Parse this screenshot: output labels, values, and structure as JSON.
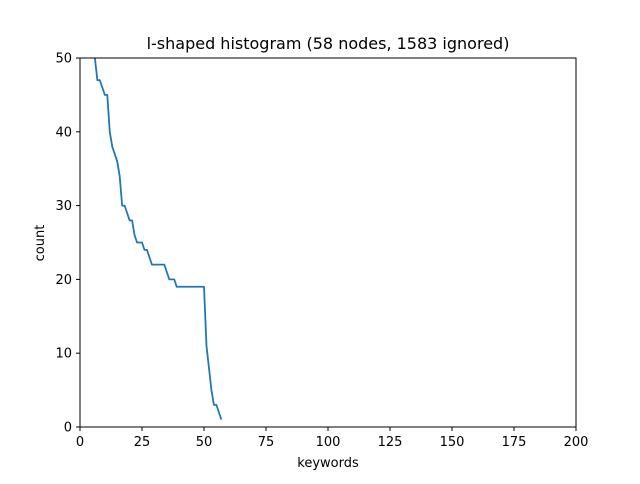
{
  "chart_data": {
    "type": "line",
    "title": "l-shaped histogram (58 nodes, 1583 ignored)",
    "xlabel": "keywords",
    "ylabel": "count",
    "xlim": [
      0,
      200
    ],
    "ylim": [
      0,
      50
    ],
    "xticks": [
      0,
      25,
      50,
      75,
      100,
      125,
      150,
      175,
      200
    ],
    "yticks": [
      0,
      10,
      20,
      30,
      40,
      50
    ],
    "grid": false,
    "line_color": "#1f77b4",
    "series": [
      {
        "x": [
          6,
          7,
          8,
          9,
          10,
          11,
          12,
          13,
          14,
          15,
          16,
          17,
          18,
          19,
          20,
          21,
          22,
          23,
          24,
          25,
          26,
          27,
          28,
          29,
          30,
          31,
          32,
          33,
          34,
          35,
          36,
          37,
          38,
          39,
          40,
          41,
          42,
          43,
          44,
          45,
          46,
          47,
          48,
          49,
          50,
          51,
          52,
          53,
          54,
          55,
          56,
          57
        ],
        "values": [
          50,
          47,
          47,
          46,
          45,
          45,
          40,
          38,
          37,
          36,
          34,
          30,
          30,
          29,
          28,
          28,
          26,
          25,
          25,
          25,
          24,
          24,
          23,
          22,
          22,
          22,
          22,
          22,
          22,
          21,
          20,
          20,
          20,
          19,
          19,
          19,
          19,
          19,
          19,
          19,
          19,
          19,
          19,
          19,
          19,
          11,
          8,
          5,
          3,
          3,
          2,
          1
        ]
      }
    ]
  }
}
